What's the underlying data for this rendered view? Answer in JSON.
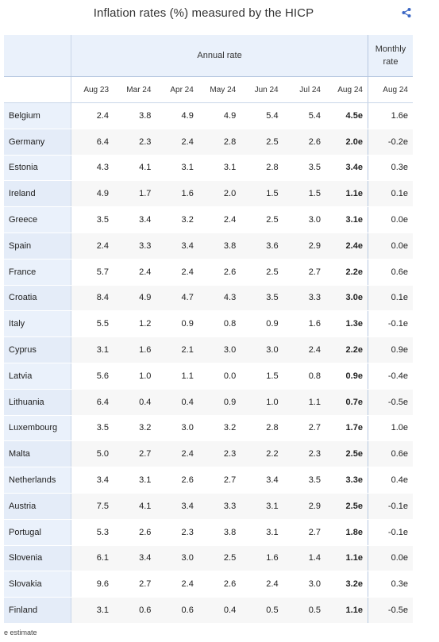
{
  "title": "Inflation rates (%) measured by the HICP",
  "share_icon": "share-icon",
  "header": {
    "annual_label": "Annual rate",
    "monthly_label_line1": "Monthly",
    "monthly_label_line2": "rate",
    "columns": [
      "Aug 23",
      "Mar 24",
      "Apr 24",
      "May 24",
      "Jun 24",
      "Jul 24",
      "Aug 24",
      "Aug 24"
    ]
  },
  "rows": [
    {
      "country": "Belgium",
      "values": [
        "2.4",
        "3.8",
        "4.9",
        "4.9",
        "5.4",
        "5.4",
        "4.5e",
        "1.6e"
      ]
    },
    {
      "country": "Germany",
      "values": [
        "6.4",
        "2.3",
        "2.4",
        "2.8",
        "2.5",
        "2.6",
        "2.0e",
        "-0.2e"
      ]
    },
    {
      "country": "Estonia",
      "values": [
        "4.3",
        "4.1",
        "3.1",
        "3.1",
        "2.8",
        "3.5",
        "3.4e",
        "0.3e"
      ]
    },
    {
      "country": "Ireland",
      "values": [
        "4.9",
        "1.7",
        "1.6",
        "2.0",
        "1.5",
        "1.5",
        "1.1e",
        "0.1e"
      ]
    },
    {
      "country": "Greece",
      "values": [
        "3.5",
        "3.4",
        "3.2",
        "2.4",
        "2.5",
        "3.0",
        "3.1e",
        "0.0e"
      ]
    },
    {
      "country": "Spain",
      "values": [
        "2.4",
        "3.3",
        "3.4",
        "3.8",
        "3.6",
        "2.9",
        "2.4e",
        "0.0e"
      ]
    },
    {
      "country": "France",
      "values": [
        "5.7",
        "2.4",
        "2.4",
        "2.6",
        "2.5",
        "2.7",
        "2.2e",
        "0.6e"
      ]
    },
    {
      "country": "Croatia",
      "values": [
        "8.4",
        "4.9",
        "4.7",
        "4.3",
        "3.5",
        "3.3",
        "3.0e",
        "0.1e"
      ]
    },
    {
      "country": "Italy",
      "values": [
        "5.5",
        "1.2",
        "0.9",
        "0.8",
        "0.9",
        "1.6",
        "1.3e",
        "-0.1e"
      ]
    },
    {
      "country": "Cyprus",
      "values": [
        "3.1",
        "1.6",
        "2.1",
        "3.0",
        "3.0",
        "2.4",
        "2.2e",
        "0.9e"
      ]
    },
    {
      "country": "Latvia",
      "values": [
        "5.6",
        "1.0",
        "1.1",
        "0.0",
        "1.5",
        "0.8",
        "0.9e",
        "-0.4e"
      ]
    },
    {
      "country": "Lithuania",
      "values": [
        "6.4",
        "0.4",
        "0.4",
        "0.9",
        "1.0",
        "1.1",
        "0.7e",
        "-0.5e"
      ]
    },
    {
      "country": "Luxembourg",
      "values": [
        "3.5",
        "3.2",
        "3.0",
        "3.2",
        "2.8",
        "2.7",
        "1.7e",
        "1.0e"
      ]
    },
    {
      "country": "Malta",
      "values": [
        "5.0",
        "2.7",
        "2.4",
        "2.3",
        "2.2",
        "2.3",
        "2.5e",
        "0.6e"
      ]
    },
    {
      "country": "Netherlands",
      "values": [
        "3.4",
        "3.1",
        "2.6",
        "2.7",
        "3.4",
        "3.5",
        "3.3e",
        "0.4e"
      ]
    },
    {
      "country": "Austria",
      "values": [
        "7.5",
        "4.1",
        "3.4",
        "3.3",
        "3.1",
        "2.9",
        "2.5e",
        "-0.1e"
      ]
    },
    {
      "country": "Portugal",
      "values": [
        "5.3",
        "2.6",
        "2.3",
        "3.8",
        "3.1",
        "2.7",
        "1.8e",
        "-0.1e"
      ]
    },
    {
      "country": "Slovenia",
      "values": [
        "6.1",
        "3.4",
        "3.0",
        "2.5",
        "1.6",
        "1.4",
        "1.1e",
        "0.0e"
      ]
    },
    {
      "country": "Slovakia",
      "values": [
        "9.6",
        "2.7",
        "2.4",
        "2.6",
        "2.4",
        "3.0",
        "3.2e",
        "0.3e"
      ]
    },
    {
      "country": "Finland",
      "values": [
        "3.1",
        "0.6",
        "0.6",
        "0.4",
        "0.5",
        "0.5",
        "1.1e",
        "-0.5e"
      ]
    }
  ],
  "footnote": "e estimate",
  "colors": {
    "header_bg": "#eaf1fb",
    "border": "#c9d6e8",
    "share_icon": "#3a66c4"
  }
}
